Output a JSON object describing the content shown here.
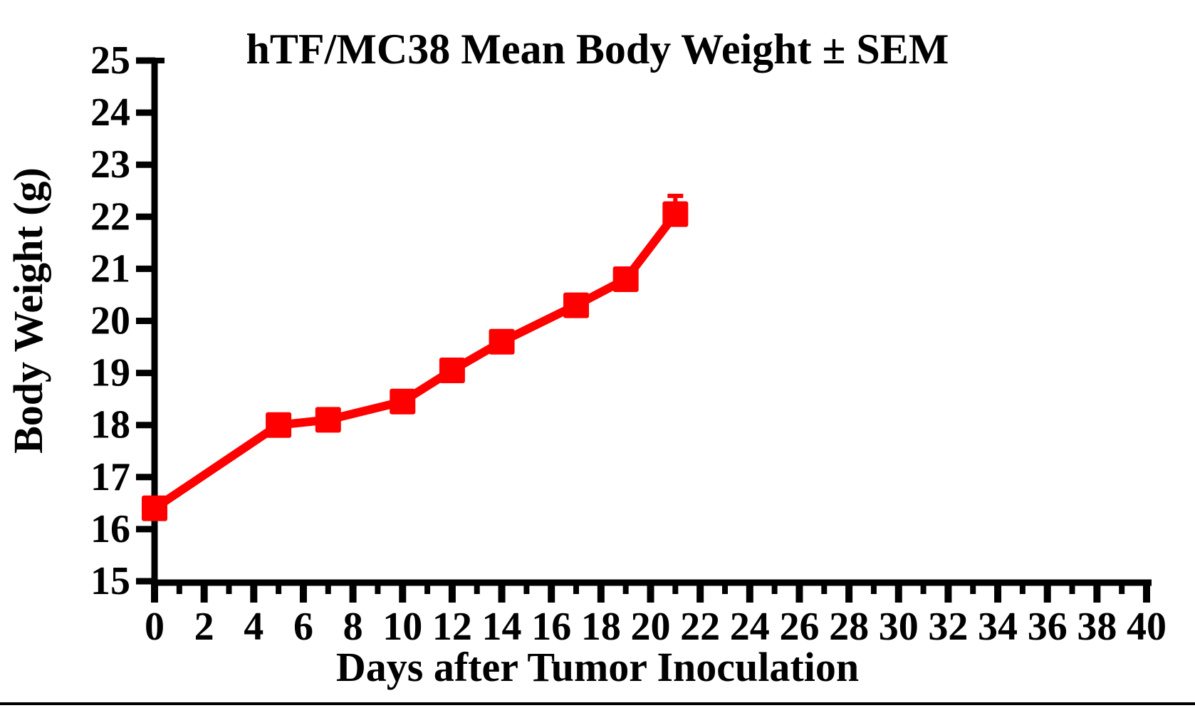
{
  "figure": {
    "background_color": "#ffffff",
    "bottom_rule_color": "#000000"
  },
  "chart_data": {
    "type": "line",
    "title": "hTF/MC38 Mean Body Weight ± SEM",
    "xlabel": "Days after Tumor Inoculation",
    "ylabel": "Body Weight (g)",
    "xlim": [
      0,
      40
    ],
    "ylim": [
      15,
      25
    ],
    "x_major_ticks": [
      0,
      2,
      4,
      6,
      8,
      10,
      12,
      14,
      16,
      18,
      20,
      22,
      24,
      26,
      28,
      30,
      32,
      34,
      36,
      38,
      40
    ],
    "x_minor_tick_interval": 1,
    "y_ticks": [
      15,
      16,
      17,
      18,
      19,
      20,
      21,
      22,
      23,
      24,
      25
    ],
    "grid": false,
    "legend": "none",
    "axis_color": "#000000",
    "text_color": "#000000",
    "series": [
      {
        "name": "hTF/MC38 mean body weight",
        "color": "#ff0000",
        "marker": "filled-square",
        "x": [
          0,
          5,
          7,
          10,
          12,
          14,
          17,
          19,
          21
        ],
        "y": [
          16.4,
          18.0,
          18.1,
          18.45,
          19.05,
          19.6,
          20.3,
          20.8,
          22.05
        ],
        "sem_upper": [
          null,
          null,
          null,
          null,
          null,
          null,
          null,
          null,
          0.35
        ]
      }
    ]
  }
}
